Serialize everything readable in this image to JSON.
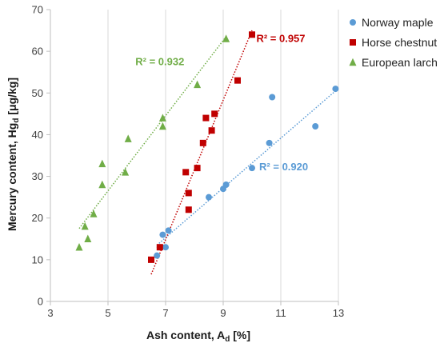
{
  "chart_data": {
    "type": "scatter",
    "xlabel": "Ash content, A",
    "xlabel_sub": "d",
    "xlabel_unit": " [%]",
    "ylabel": "Mercury content, Hg",
    "ylabel_sub": "d",
    "ylabel_unit": " [μg/kg]",
    "xlim": [
      3,
      13
    ],
    "ylim": [
      0,
      70
    ],
    "xticks": [
      3,
      5,
      7,
      9,
      11,
      13
    ],
    "yticks": [
      0,
      10,
      20,
      30,
      40,
      50,
      60,
      70
    ],
    "grid": "vertical",
    "legend_position": "top-right",
    "series": [
      {
        "name": "Norway maple",
        "marker": "circle",
        "color": "#5B9BD5",
        "r2_label": "R² = 0.920",
        "trendline": [
          [
            6.7,
            13.5
          ],
          [
            12.9,
            50.5
          ]
        ],
        "points": [
          [
            6.7,
            11
          ],
          [
            6.8,
            13
          ],
          [
            6.9,
            16
          ],
          [
            7.0,
            13
          ],
          [
            7.1,
            17
          ],
          [
            8.5,
            25
          ],
          [
            9.0,
            27
          ],
          [
            9.1,
            28
          ],
          [
            10.0,
            32
          ],
          [
            10.6,
            38
          ],
          [
            10.7,
            49
          ],
          [
            12.2,
            42
          ],
          [
            12.9,
            51
          ]
        ]
      },
      {
        "name": "Horse chestnut",
        "marker": "square",
        "color": "#C00000",
        "r2_label": "R² = 0.957",
        "trendline": [
          [
            6.5,
            6.5
          ],
          [
            10.0,
            65
          ]
        ],
        "points": [
          [
            6.5,
            10
          ],
          [
            6.8,
            13
          ],
          [
            7.7,
            31
          ],
          [
            7.8,
            26
          ],
          [
            7.8,
            22
          ],
          [
            8.1,
            32
          ],
          [
            8.3,
            38
          ],
          [
            8.4,
            44
          ],
          [
            8.6,
            41
          ],
          [
            8.7,
            45
          ],
          [
            9.5,
            53
          ],
          [
            10.0,
            64
          ]
        ]
      },
      {
        "name": "European larch",
        "marker": "triangle",
        "color": "#70AD47",
        "r2_label": "R² = 0.932",
        "trendline": [
          [
            4.0,
            17.5
          ],
          [
            9.1,
            63.5
          ]
        ],
        "points": [
          [
            4.0,
            13
          ],
          [
            4.2,
            18
          ],
          [
            4.3,
            15
          ],
          [
            4.5,
            21
          ],
          [
            4.8,
            33
          ],
          [
            4.8,
            28
          ],
          [
            5.6,
            31
          ],
          [
            5.7,
            39
          ],
          [
            6.9,
            44
          ],
          [
            6.9,
            42
          ],
          [
            8.1,
            52
          ],
          [
            9.1,
            63
          ]
        ]
      }
    ]
  }
}
